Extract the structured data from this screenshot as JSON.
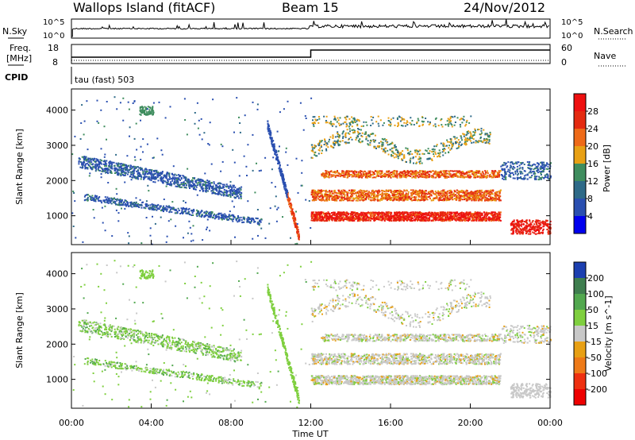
{
  "header": {
    "site": "Wallops Island (fitACF)",
    "beam": "Beam 15",
    "date": "24/Nov/2012"
  },
  "noise_panel": {
    "left_label": "N.Sky",
    "left_ticks": [
      "10^5",
      "10^0"
    ],
    "right_ticks": [
      "10^5",
      "10^0"
    ],
    "right_label": "N.Search"
  },
  "freq_panel": {
    "label_line1": "Freq.",
    "label_line2": "[MHz]",
    "left_ticks": [
      18,
      8
    ],
    "right_ticks": [
      60,
      0
    ],
    "right_label": "Nave",
    "cpid_label": "CPID",
    "cpid_value": "tau (fast) 503",
    "freq_switch_hour": 12.0
  },
  "chart_data": [
    {
      "type": "heatmap",
      "name": "power",
      "ylabel": "Slant Range [km]",
      "ylim": [
        180,
        4600
      ],
      "yticks": [
        1000,
        2000,
        3000,
        4000
      ],
      "xlim": [
        0,
        24
      ],
      "colorbar": {
        "label": "Power [dB]",
        "ticks": [
          4,
          8,
          12,
          16,
          20,
          24,
          28
        ],
        "colors": [
          "#0000ee",
          "#2a4fb0",
          "#2e6a88",
          "#3f8d5e",
          "#e8a014",
          "#ee6a18",
          "#e42a10",
          "#ee1010"
        ]
      }
    },
    {
      "type": "heatmap",
      "name": "velocity",
      "ylabel": "Slant Range [km]",
      "ylim": [
        180,
        4600
      ],
      "yticks": [
        1000,
        2000,
        3000,
        4000
      ],
      "xlim": [
        0,
        24
      ],
      "xlabel": "Time UT",
      "xticks": [
        "00:00",
        "04:00",
        "08:00",
        "12:00",
        "16:00",
        "20:00",
        "00:00"
      ],
      "colorbar": {
        "label": "Velocity [m s^-1]",
        "ticks": [
          200,
          100,
          50,
          15,
          -15,
          -50,
          -100,
          -200
        ],
        "colors": [
          "#1c3fb0",
          "#3f7e4f",
          "#52a84f",
          "#7fcf3f",
          "#c8c8c8",
          "#e8a014",
          "#ee7a18",
          "#ee3010",
          "#ee0000"
        ]
      }
    }
  ]
}
